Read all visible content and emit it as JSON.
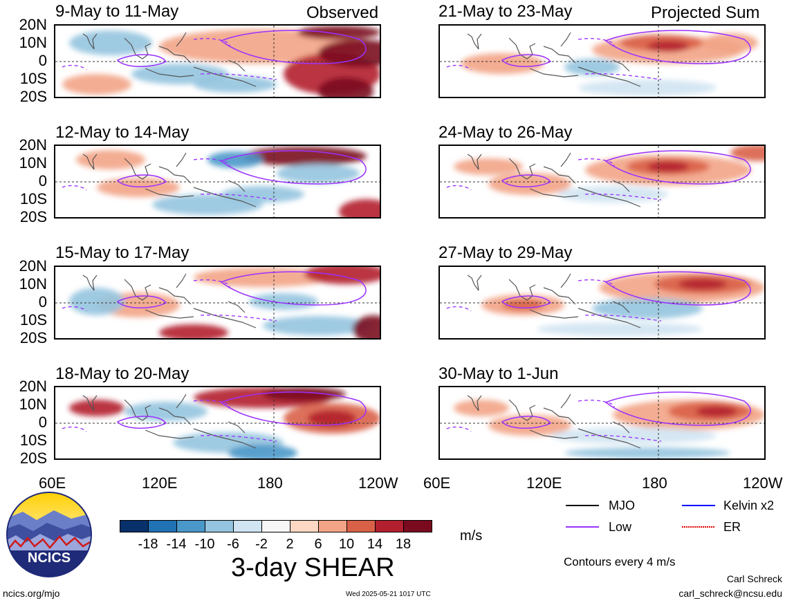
{
  "panels": [
    {
      "title": "9-May to 11-May",
      "tag": "Observed",
      "kind": "obs"
    },
    {
      "title": "12-May to 14-May",
      "tag": "",
      "kind": "obs"
    },
    {
      "title": "15-May to 17-May",
      "tag": "",
      "kind": "obs"
    },
    {
      "title": "18-May to 20-May",
      "tag": "",
      "kind": "obs"
    },
    {
      "title": "21-May to 23-May",
      "tag": "Projected Sum",
      "kind": "proj"
    },
    {
      "title": "24-May to 26-May",
      "tag": "",
      "kind": "proj"
    },
    {
      "title": "27-May to 29-May",
      "tag": "",
      "kind": "proj"
    },
    {
      "title": "30-May to 1-Jun",
      "tag": "",
      "kind": "proj"
    }
  ],
  "lat_labels": [
    "20N",
    "10N",
    "0",
    "10S",
    "20S"
  ],
  "lon_labels": [
    "60E",
    "120E",
    "180",
    "120W"
  ],
  "colorbar": {
    "colors": [
      "#08306b",
      "#2171b5",
      "#4a98c9",
      "#94c4df",
      "#d0e4f2",
      "#f7f7f7",
      "#fbd7c4",
      "#f2a486",
      "#d96148",
      "#b21f2e",
      "#7a0b1f"
    ],
    "labels": [
      "-18",
      "-14",
      "-10",
      "-6",
      "-2",
      "2",
      "6",
      "10",
      "14",
      "18"
    ],
    "units": "m/s",
    "title": "3-day SHEAR"
  },
  "legend": {
    "items": [
      {
        "label": "MJO",
        "color": "#000000"
      },
      {
        "label": "Kelvin x2",
        "color": "#0000ff"
      },
      {
        "label": "Low",
        "color": "#9b30ff"
      },
      {
        "label": "ER",
        "color": "#e00000"
      }
    ],
    "note": "Contours every 4 m/s"
  },
  "logo": {
    "text": "NCICS"
  },
  "footer": {
    "left": "ncics.org/mjo",
    "center": "Wed 2025-05-21 1017 UTC",
    "author": "Carl Schreck",
    "email": "carl_schreck@ncsu.edu"
  }
}
